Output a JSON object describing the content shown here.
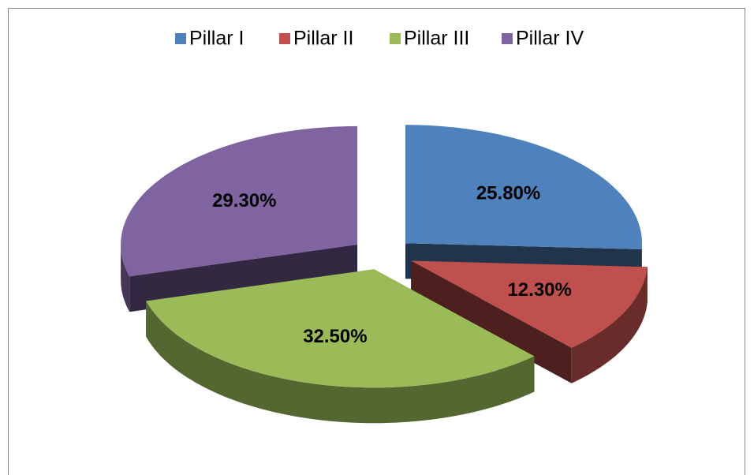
{
  "chart_data": {
    "type": "pie",
    "three_d": true,
    "exploded": true,
    "categories": [
      "Pillar I",
      "Pillar II",
      "Pillar III",
      "Pillar IV"
    ],
    "values": [
      25.8,
      12.3,
      32.5,
      29.3
    ],
    "value_labels": [
      "25.80%",
      "12.30%",
      "32.50%",
      "29.30%"
    ],
    "colors": [
      "#4f81bd",
      "#c0504d",
      "#9bbb59",
      "#8064a2"
    ],
    "legend": "top"
  }
}
